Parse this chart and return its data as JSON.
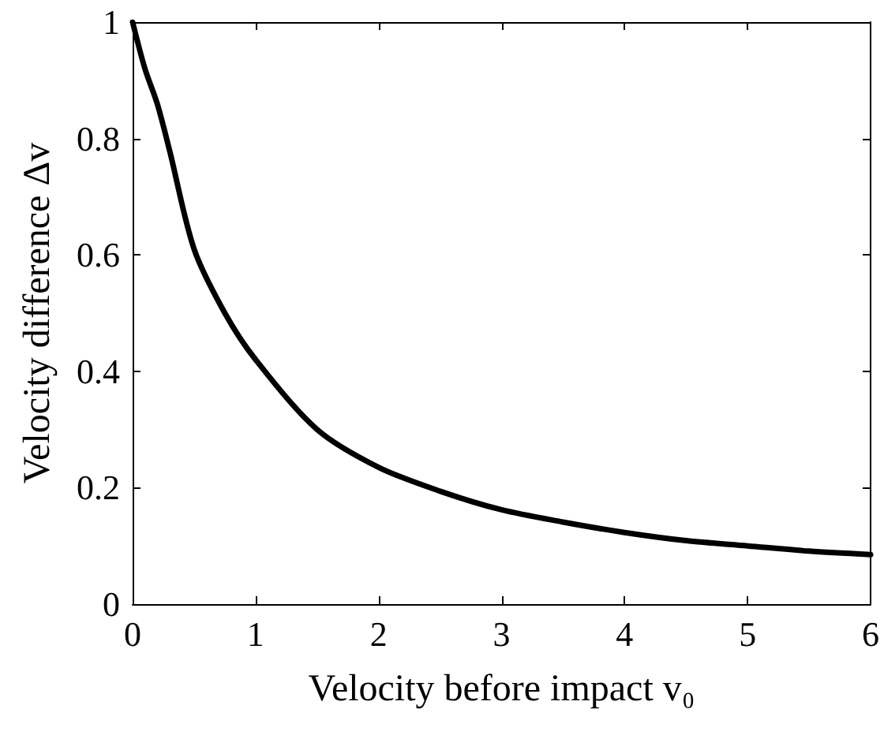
{
  "chart_data": {
    "type": "line",
    "xlabel": "Velocity before impact v₀",
    "ylabel": "Velocity difference Δv",
    "x": [
      0,
      0.1,
      0.2,
      0.3,
      0.5,
      0.75,
      1,
      1.5,
      2,
      2.5,
      3,
      3.5,
      4,
      4.5,
      5,
      5.5,
      6
    ],
    "series": [
      {
        "color": "#000000",
        "values": [
          1,
          0.92,
          0.86,
          0.78,
          0.61,
          0.5,
          0.42,
          0.3,
          0.235,
          0.194,
          0.162,
          0.141,
          0.123,
          0.109,
          0.1,
          0.091,
          0.085
        ]
      }
    ],
    "xlim": [
      0,
      6
    ],
    "xticks": [
      0,
      1,
      2,
      3,
      4,
      5,
      6
    ],
    "ylim": [
      0,
      1
    ],
    "yticks": [
      0,
      0.2,
      0.4,
      0.6,
      0.8,
      1
    ],
    "grid": false,
    "marker": "none",
    "line_style": "solid"
  }
}
